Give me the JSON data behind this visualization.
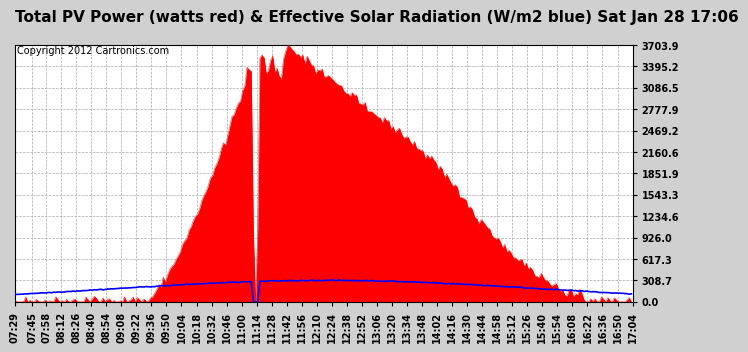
{
  "title": "Total PV Power (watts red) & Effective Solar Radiation (W/m2 blue) Sat Jan 28 17:06",
  "copyright": "Copyright 2012 Cartronics.com",
  "bg_color": "#d0d0d0",
  "plot_bg_color": "#ffffff",
  "ymax": 3703.9,
  "ymin": 0.0,
  "yticks": [
    0.0,
    308.7,
    617.3,
    926.0,
    1234.6,
    1543.3,
    1851.9,
    2160.6,
    2469.2,
    2777.9,
    3086.5,
    3395.2,
    3703.9
  ],
  "grid_color": "#aaaaaa",
  "fill_color": "#ff0000",
  "line_color": "#0000ff",
  "title_fontsize": 11,
  "copyright_fontsize": 7,
  "tick_fontsize": 7,
  "xtick_labels": [
    "07:29",
    "07:45",
    "07:58",
    "08:12",
    "08:26",
    "08:40",
    "08:54",
    "09:08",
    "09:22",
    "09:36",
    "09:50",
    "10:04",
    "10:18",
    "10:32",
    "10:46",
    "11:00",
    "11:14",
    "11:28",
    "11:42",
    "11:56",
    "12:10",
    "12:24",
    "12:38",
    "12:52",
    "13:06",
    "13:20",
    "13:34",
    "13:48",
    "14:02",
    "14:16",
    "14:30",
    "14:44",
    "14:58",
    "15:12",
    "15:26",
    "15:40",
    "15:54",
    "16:08",
    "16:22",
    "16:36",
    "16:50",
    "17:04"
  ]
}
